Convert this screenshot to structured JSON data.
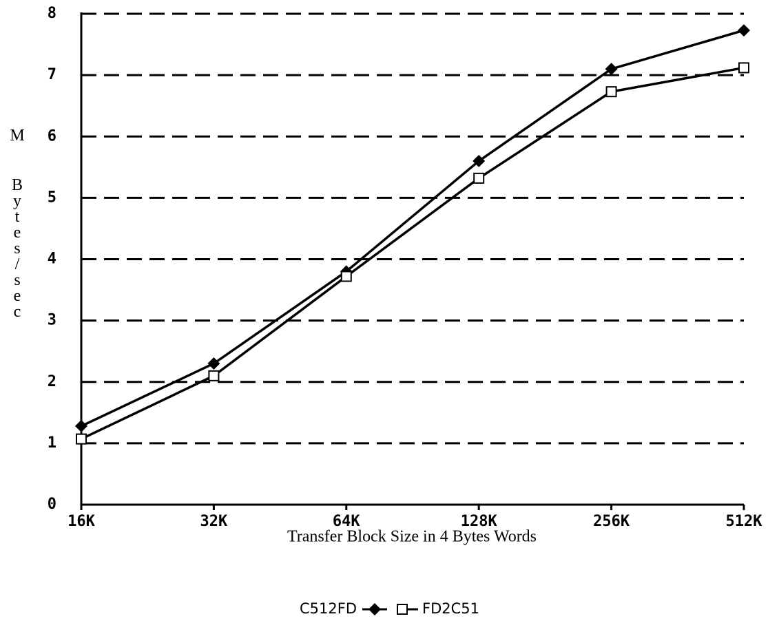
{
  "chart_data": {
    "type": "line",
    "x_label": "Transfer Block Size in 4 Bytes Words",
    "y_label": "M Bytes/sec",
    "categories": [
      "16K",
      "32K",
      "64K",
      "128K",
      "256K",
      "512K"
    ],
    "series": [
      {
        "name": "C512FD",
        "color": "#000000",
        "marker": "diamond",
        "values": [
          1.28,
          2.3,
          3.8,
          5.6,
          7.1,
          7.73
        ]
      },
      {
        "name": "FD2C51",
        "color": "#000000",
        "marker": "square",
        "values": [
          1.07,
          2.1,
          3.72,
          5.32,
          6.73,
          7.12
        ]
      }
    ],
    "ylim": [
      0,
      8
    ],
    "yticks": [
      0,
      1,
      2,
      3,
      4,
      5,
      6,
      7,
      8
    ],
    "grid": true,
    "legend": "bottom"
  }
}
